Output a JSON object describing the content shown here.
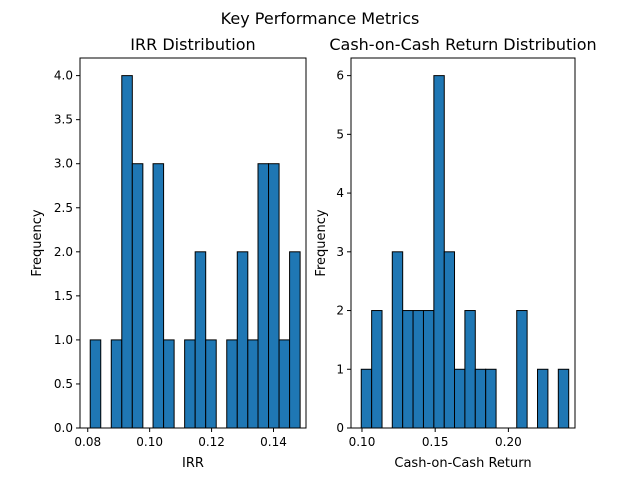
{
  "chart_data": {
    "title": "Key Performance Metrics",
    "colors": {
      "bar_fill": "#1f77b4",
      "bar_edge": "#000000"
    },
    "panels": [
      {
        "type": "bar",
        "title": "IRR Distribution",
        "xlabel": "IRR",
        "ylabel": "Frequency",
        "xlim": [
          0.0775,
          0.1505
        ],
        "ylim": [
          0,
          4.2
        ],
        "xticks": [
          0.08,
          0.1,
          0.12,
          0.14
        ],
        "xtick_labels": [
          "0.08",
          "0.10",
          "0.12",
          "0.14"
        ],
        "yticks": [
          0,
          0.5,
          1,
          1.5,
          2,
          2.5,
          3,
          3.5,
          4
        ],
        "ytick_labels": [
          "0.0",
          "0.5",
          "1.0",
          "1.5",
          "2.0",
          "2.5",
          "3.0",
          "3.5",
          "4.0"
        ],
        "bin_edges": [
          0.0808,
          0.0842,
          0.0876,
          0.091,
          0.0944,
          0.0978,
          0.1011,
          0.1045,
          0.1079,
          0.1113,
          0.1147,
          0.1181,
          0.1215,
          0.1249,
          0.1283,
          0.1317,
          0.135,
          0.1384,
          0.1418,
          0.1452,
          0.1486
        ],
        "counts": [
          1,
          0,
          1,
          4,
          3,
          0,
          3,
          1,
          0,
          1,
          2,
          1,
          0,
          1,
          2,
          1,
          3,
          3,
          1,
          2
        ]
      },
      {
        "type": "bar",
        "title": "Cash-on-Cash Return Distribution",
        "xlabel": "Cash-on-Cash Return",
        "ylabel": "Frequency",
        "xlim": [
          0.0925,
          0.2455
        ],
        "ylim": [
          0,
          6.3
        ],
        "xticks": [
          0.1,
          0.15,
          0.2
        ],
        "xtick_labels": [
          "0.10",
          "0.15",
          "0.20"
        ],
        "yticks": [
          0,
          1,
          2,
          3,
          4,
          5,
          6
        ],
        "ytick_labels": [
          "0",
          "1",
          "2",
          "3",
          "4",
          "5",
          "6"
        ],
        "bin_edges": [
          0.0995,
          0.1066,
          0.1137,
          0.1207,
          0.1278,
          0.1349,
          0.142,
          0.1491,
          0.1562,
          0.1632,
          0.1703,
          0.1774,
          0.1845,
          0.1916,
          0.1987,
          0.2057,
          0.2128,
          0.2199,
          0.227,
          0.2341,
          0.2412
        ],
        "counts": [
          1,
          2,
          0,
          3,
          2,
          2,
          2,
          6,
          3,
          1,
          2,
          1,
          1,
          0,
          0,
          2,
          0,
          1,
          0,
          1
        ]
      }
    ]
  }
}
